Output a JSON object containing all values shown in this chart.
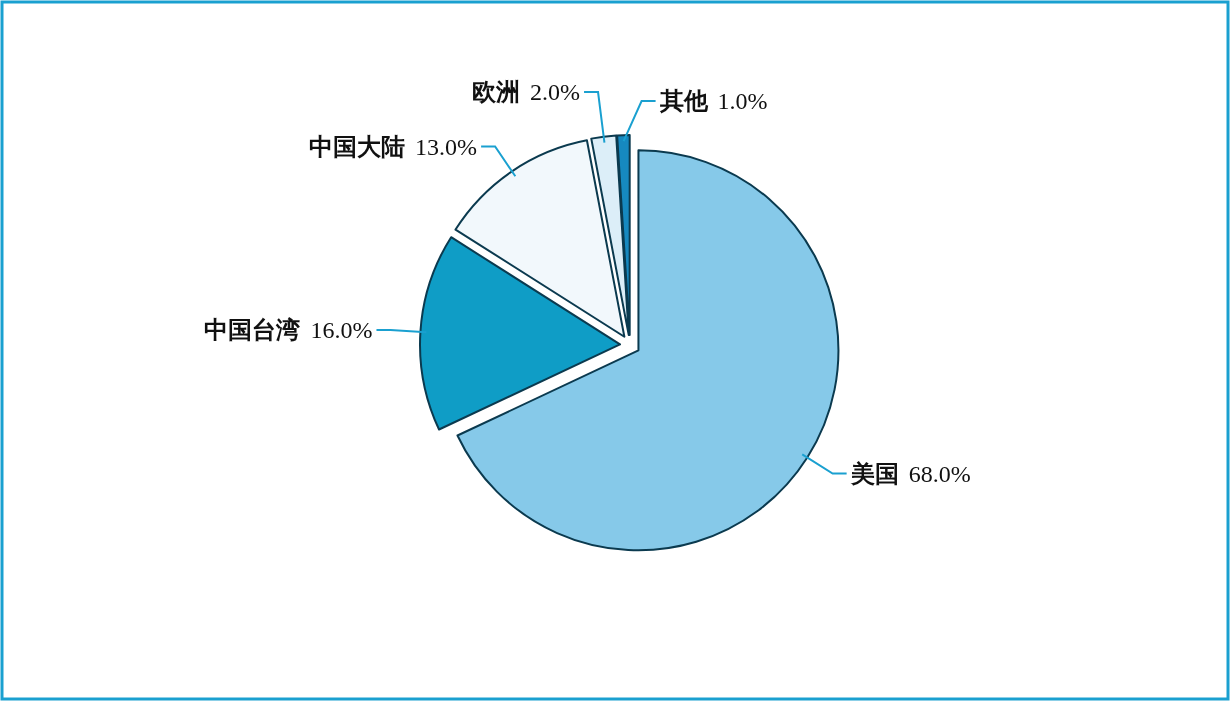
{
  "chart_data": {
    "type": "pie",
    "categories": [
      "美国",
      "中国台湾",
      "中国大陆",
      "欧洲",
      "其他"
    ],
    "values": [
      68.0,
      16.0,
      13.0,
      2.0,
      1.0
    ],
    "colors": [
      "#86c9e9",
      "#0f9dc6",
      "#f2f8fc",
      "#dceef8",
      "#1689c0"
    ],
    "value_labels": [
      "68.0%",
      "16.0%",
      "13.0%",
      "2.0%",
      "1.0%"
    ]
  }
}
